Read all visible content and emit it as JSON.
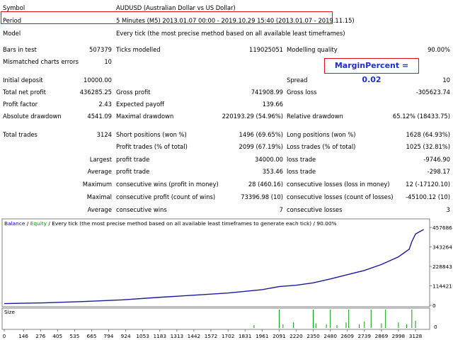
{
  "report": {
    "symbol_label": "Symbol",
    "symbol_value": "AUDUSD (Australian Dollar vs US Dollar)",
    "period_label": "Period",
    "period_value": "5 Minutes (M5) 2013.01.07 00:00 - 2019.10.29 15:40 (2013.01.07 - 2019.11.15)",
    "model_label": "Model",
    "model_value": "Every tick (the most precise method based on all available least timeframes)",
    "bars_label": "Bars in test",
    "bars_value": "507379",
    "ticks_label": "Ticks modelled",
    "ticks_value": "119025051",
    "quality_label": "Modelling quality",
    "quality_value": "90.00%",
    "mismatch_label": "Mismatched charts errors",
    "mismatch_value": "10",
    "margin_percent": "MarginPercent = 0.02",
    "deposit_label": "Initial deposit",
    "deposit_value": "10000.00",
    "spread_label": "Spread",
    "spread_value": "10",
    "netprofit_label": "Total net profit",
    "netprofit_value": "436285.25",
    "grossprofit_label": "Gross profit",
    "grossprofit_value": "741908.99",
    "grossloss_label": "Gross loss",
    "grossloss_value": "-305623.74",
    "pf_label": "Profit factor",
    "pf_value": "2.43",
    "ep_label": "Expected payoff",
    "ep_value": "139.66",
    "absdd_label": "Absolute drawdown",
    "absdd_value": "4541.09",
    "maxdd_label": "Maximal drawdown",
    "maxdd_value": "220193.29 (54.96%)",
    "reldd_label": "Relative drawdown",
    "reldd_value": "65.12% (18433.75)",
    "trades_label": "Total trades",
    "trades_value": "3124",
    "short_label": "Short positions (won %)",
    "short_value": "1496 (69.65%)",
    "long_label": "Long positions (won %)",
    "long_value": "1628 (64.93%)",
    "ptrades_label": "Profit trades (% of total)",
    "ptrades_value": "2099 (67.19%)",
    "ltrades_label": "Loss trades (% of total)",
    "ltrades_value": "1025 (32.81%)",
    "largest_label": "Largest",
    "lp_label": "profit trade",
    "lp_value": "34000.00",
    "ll_label": "loss trade",
    "ll_value": "-9746.90",
    "average_label": "Average",
    "ap_label": "profit trade",
    "ap_value": "353.46",
    "al_label": "loss trade",
    "al_value": "-298.17",
    "maximum_label": "Maximum",
    "mcw_label": "consecutive wins (profit in money)",
    "mcw_value": "28 (460.16)",
    "mcl_label": "consecutive losses (loss in money)",
    "mcl_value": "12 (-17120.10)",
    "maximal_label": "Maximal",
    "mcp_label": "consecutive profit (count of wins)",
    "mcp_value": "73396.98 (10)",
    "mcll_label": "consecutive losses (count of losses)",
    "mcll_value": "-45100.12 (10)",
    "average2_label": "Average",
    "acw_label": "consecutive wins",
    "acw_value": "7",
    "acl_label": "consecutive losses",
    "acl_value": "3"
  },
  "chart_caption": {
    "balance": "Balance",
    "sep": " / ",
    "equity": "Equity",
    "rest": " / Every tick (the most precise method based on all available least timeframes to generate each tick) / 90.00%"
  },
  "chart_data": {
    "type": "line",
    "title": "",
    "y_ticks": [
      "457686",
      "343264",
      "228843",
      "114421",
      "0"
    ],
    "x_ticks": [
      "0",
      "146",
      "276",
      "405",
      "535",
      "665",
      "794",
      "924",
      "1053",
      "1183",
      "1313",
      "1442",
      "1572",
      "1702",
      "1831",
      "1961",
      "2091",
      "2220",
      "2350",
      "2480",
      "2609",
      "2739",
      "2869",
      "2998",
      "3128"
    ],
    "xlim": [
      0,
      3230
    ],
    "ylim": [
      0,
      500000
    ],
    "series": [
      {
        "name": "Balance",
        "color": "#1a1a9a",
        "x": [
          0,
          300,
          600,
          900,
          1200,
          1500,
          1700,
          1831,
          1961,
          2091,
          2220,
          2350,
          2480,
          2609,
          2739,
          2869,
          2998,
          3080,
          3100,
          3128,
          3190
        ],
        "y": [
          10000,
          14000,
          22000,
          32000,
          48000,
          62000,
          72000,
          82000,
          92000,
          110000,
          118000,
          132000,
          155000,
          180000,
          205000,
          240000,
          285000,
          330000,
          375000,
          420000,
          446000
        ]
      }
    ],
    "size_panel": {
      "label": "Size",
      "zero_label": "0",
      "bar_color": "#00a000",
      "x": [
        1900,
        2091,
        2120,
        2200,
        2350,
        2370,
        2450,
        2480,
        2530,
        2600,
        2620,
        2700,
        2739,
        2790,
        2869,
        2900,
        2998,
        3060,
        3100,
        3128
      ],
      "heights": [
        0.15,
        1.0,
        0.2,
        0.3,
        1.0,
        0.25,
        0.2,
        1.0,
        0.15,
        0.3,
        1.0,
        0.2,
        0.35,
        1.0,
        0.25,
        1.0,
        0.3,
        0.2,
        1.0,
        0.4
      ]
    }
  }
}
